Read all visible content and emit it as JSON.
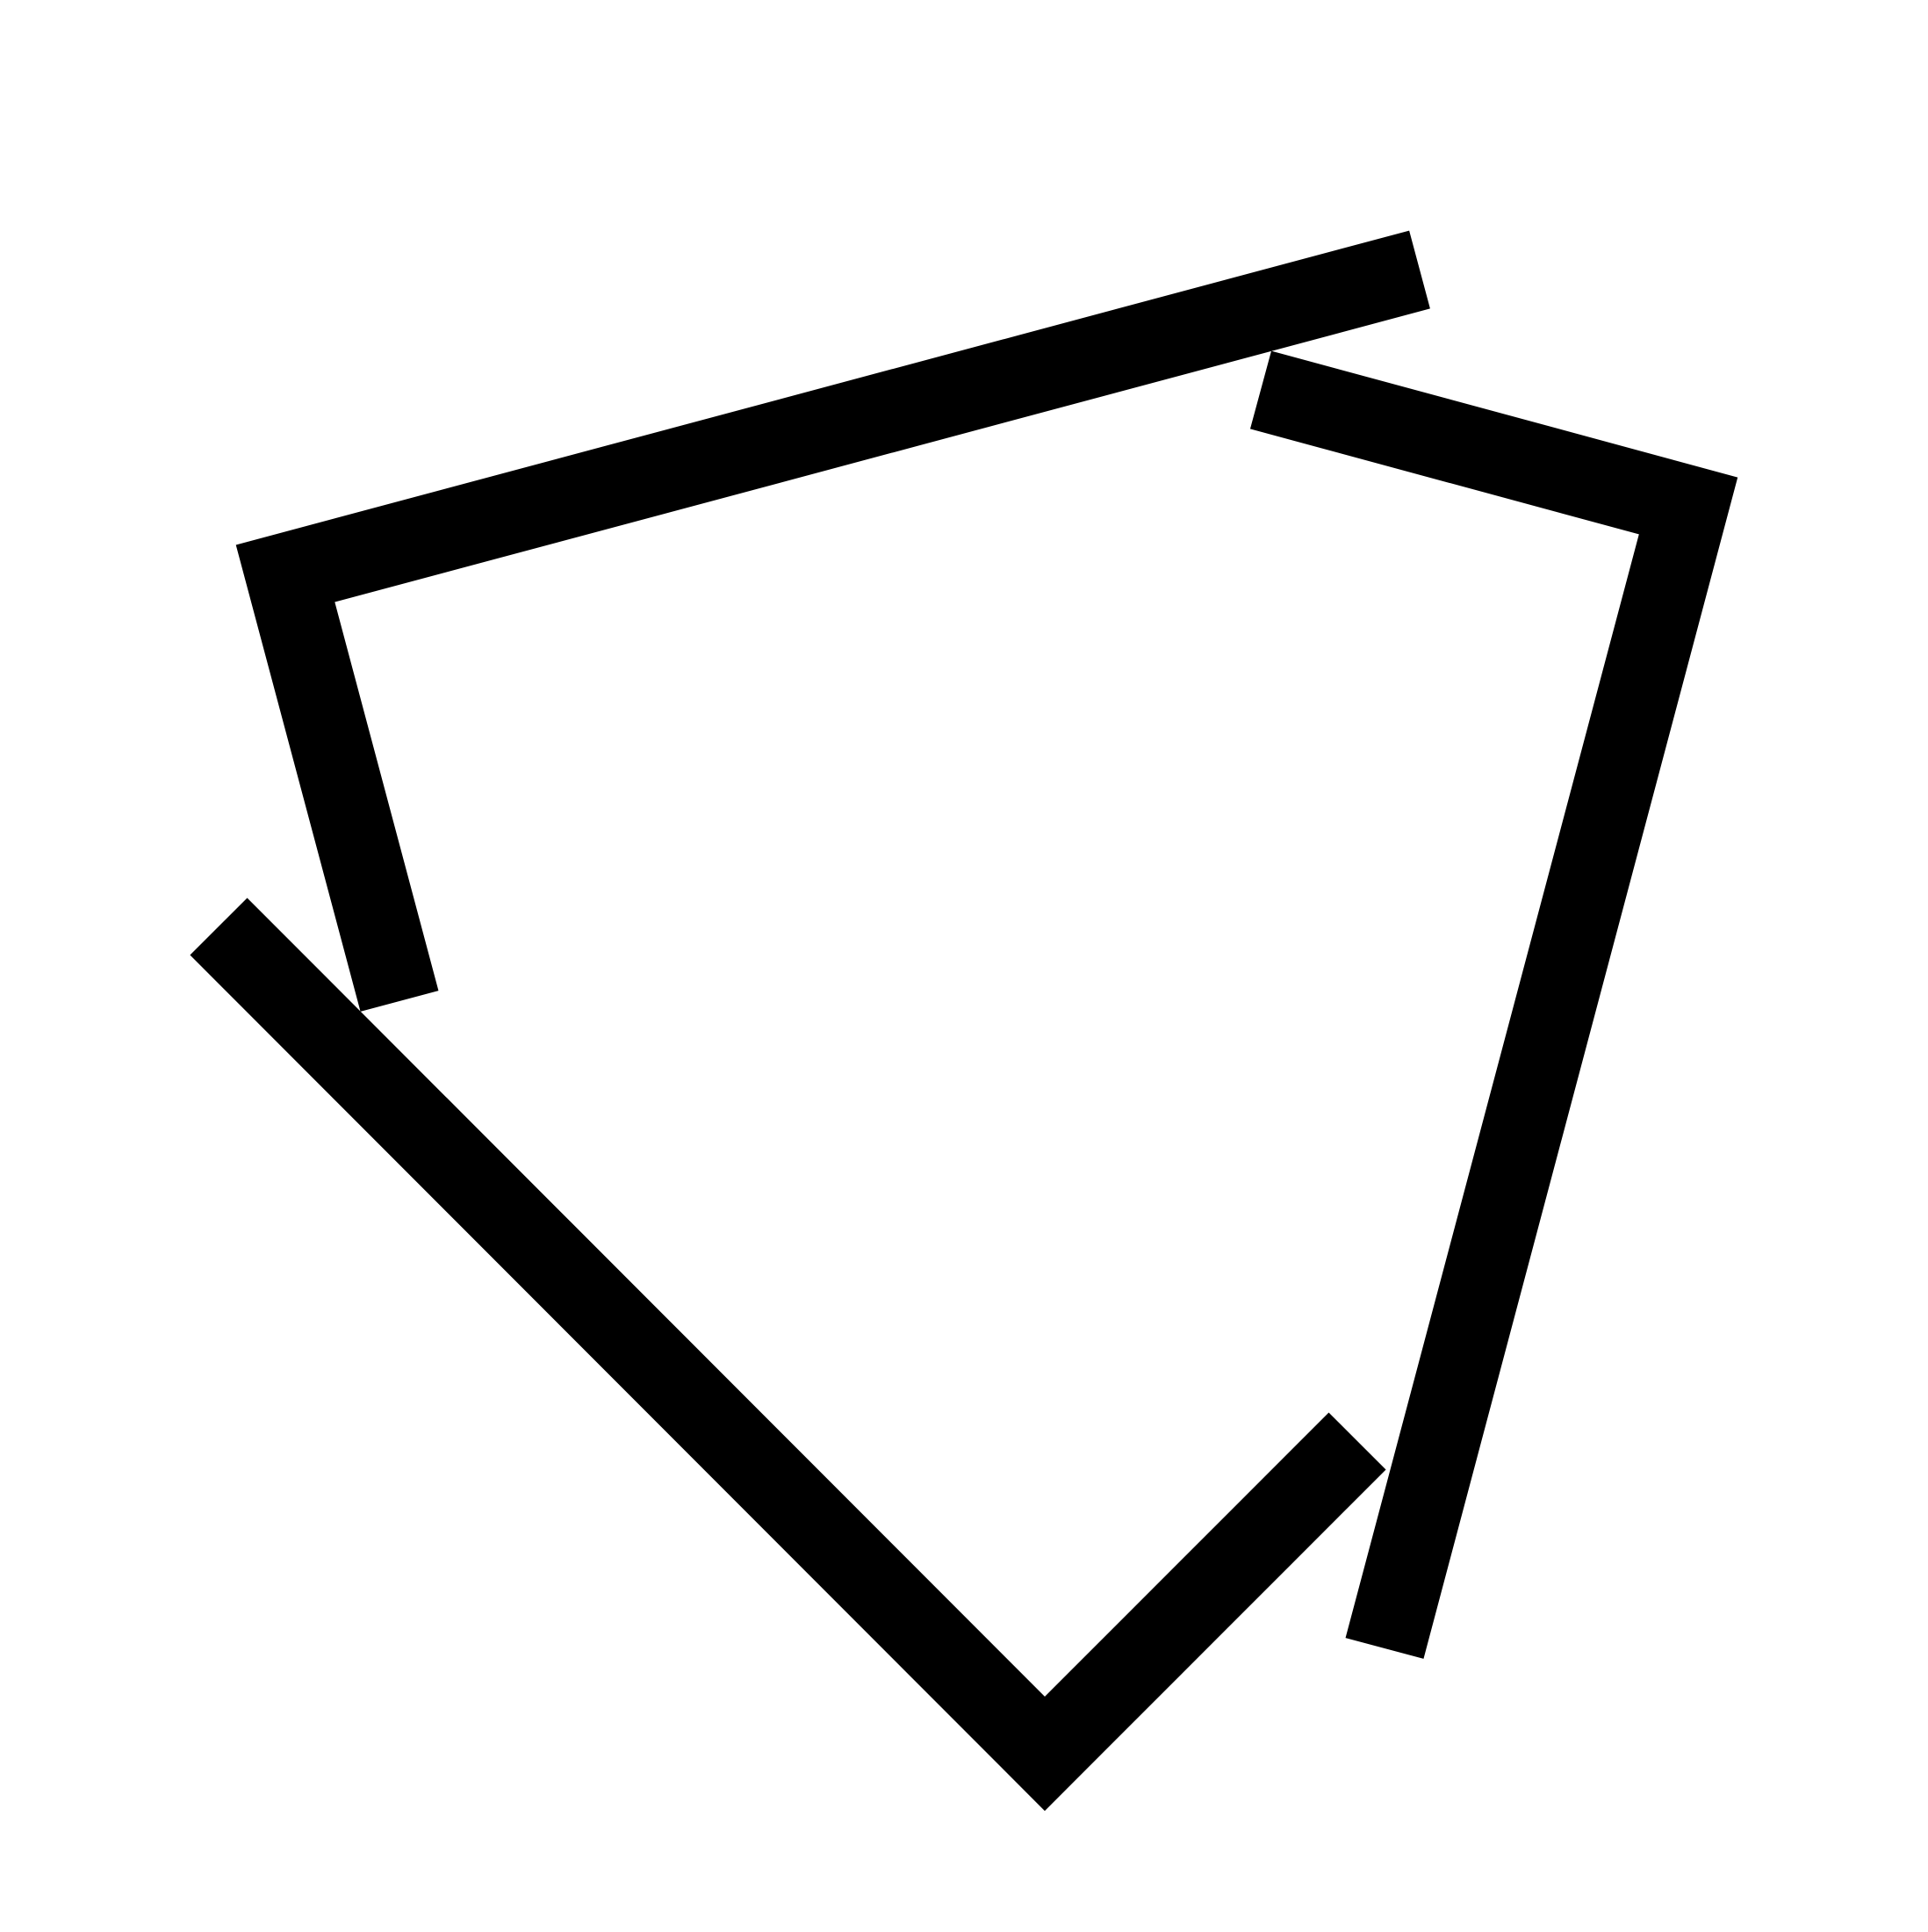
{
  "diagram": {
    "background": "#ffffff",
    "stroke_color": "#000000",
    "strokes": [
      {
        "id": "stroke-top-left-bracket"
      },
      {
        "id": "stroke-right-bracket"
      },
      {
        "id": "stroke-bottom-chevron"
      }
    ]
  }
}
